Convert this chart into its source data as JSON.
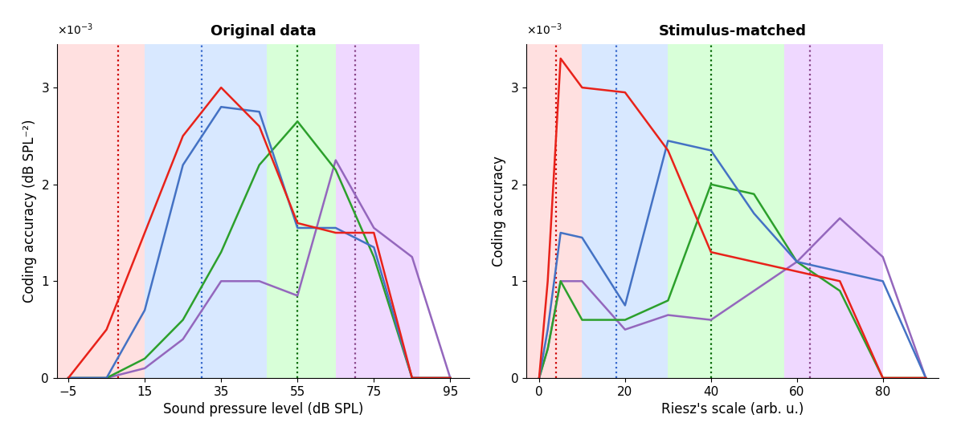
{
  "left_title": "Original data",
  "right_title": "Stimulus-matched",
  "left_xlabel": "Sound pressure level (dB SPL)",
  "right_xlabel": "Riesz's scale (arb. u.)",
  "ylabel_left": "Coding accuracy (dB SPL⁻²)",
  "ylabel_right": "Coding accuracy",
  "left_xlim": [
    -8,
    100
  ],
  "left_xticks": [
    -5,
    15,
    35,
    55,
    75,
    95
  ],
  "right_xlim": [
    -3,
    93
  ],
  "right_xticks": [
    0,
    20,
    40,
    60,
    80
  ],
  "ylim": [
    0,
    0.00345
  ],
  "yticks": [
    0,
    0.001,
    0.002,
    0.003
  ],
  "ytick_labels": [
    "0",
    "1",
    "2",
    "3"
  ],
  "left_bg_bands": [
    {
      "xmin": -8,
      "xmax": 15,
      "color": "#ffbbbb",
      "alpha": 0.45
    },
    {
      "xmin": 15,
      "xmax": 47,
      "color": "#aaccff",
      "alpha": 0.45
    },
    {
      "xmin": 47,
      "xmax": 65,
      "color": "#aaffaa",
      "alpha": 0.45
    },
    {
      "xmin": 65,
      "xmax": 87,
      "color": "#ddaaff",
      "alpha": 0.45
    }
  ],
  "right_bg_bands": [
    {
      "xmin": -3,
      "xmax": 10,
      "color": "#ffbbbb",
      "alpha": 0.45
    },
    {
      "xmin": 10,
      "xmax": 30,
      "color": "#aaccff",
      "alpha": 0.45
    },
    {
      "xmin": 30,
      "xmax": 57,
      "color": "#aaffaa",
      "alpha": 0.45
    },
    {
      "xmin": 57,
      "xmax": 80,
      "color": "#ddaaff",
      "alpha": 0.45
    }
  ],
  "left_vlines": [
    {
      "x": 8,
      "color": "#cc0000"
    },
    {
      "x": 30,
      "color": "#3366cc"
    },
    {
      "x": 55,
      "color": "#006600"
    },
    {
      "x": 70,
      "color": "#884488"
    }
  ],
  "right_vlines": [
    {
      "x": 4,
      "color": "#cc0000"
    },
    {
      "x": 18,
      "color": "#3366cc"
    },
    {
      "x": 40,
      "color": "#006600"
    },
    {
      "x": 63,
      "color": "#884488"
    }
  ],
  "left_red_x": [
    -5,
    5,
    15,
    25,
    35,
    45,
    55,
    65,
    75,
    85,
    95
  ],
  "left_red_y": [
    0,
    0.0005,
    0.0015,
    0.0025,
    0.003,
    0.0026,
    0.0016,
    0.0015,
    0.0015,
    0.0,
    0.0
  ],
  "left_blue_x": [
    -5,
    5,
    15,
    25,
    35,
    45,
    55,
    65,
    75,
    85,
    95
  ],
  "left_blue_y": [
    0,
    0.0,
    0.0007,
    0.0022,
    0.0028,
    0.00275,
    0.00155,
    0.00155,
    0.00135,
    0.0,
    0.0
  ],
  "left_green_x": [
    -5,
    5,
    15,
    25,
    35,
    45,
    55,
    65,
    75,
    85,
    95
  ],
  "left_green_y": [
    0,
    0.0,
    0.0002,
    0.0006,
    0.0013,
    0.0022,
    0.00265,
    0.00215,
    0.00125,
    0.0,
    0.0
  ],
  "left_purple_x": [
    -5,
    5,
    15,
    25,
    35,
    45,
    55,
    65,
    75,
    85,
    95
  ],
  "left_purple_y": [
    0,
    0.0,
    0.0001,
    0.0004,
    0.001,
    0.001,
    0.00085,
    0.00225,
    0.00155,
    0.00125,
    0.0
  ],
  "right_red_x": [
    0,
    2,
    5,
    10,
    20,
    30,
    40,
    50,
    60,
    70,
    80,
    90
  ],
  "right_red_y": [
    0,
    0.001,
    0.0033,
    0.003,
    0.00295,
    0.00235,
    0.0013,
    0.0012,
    0.0011,
    0.001,
    0.0,
    0.0
  ],
  "right_blue_x": [
    0,
    2,
    5,
    10,
    20,
    30,
    40,
    50,
    60,
    70,
    80,
    90
  ],
  "right_blue_y": [
    0,
    0.0005,
    0.0015,
    0.00145,
    0.00075,
    0.00245,
    0.00235,
    0.0017,
    0.0012,
    0.0011,
    0.001,
    0.0
  ],
  "right_green_x": [
    0,
    2,
    5,
    10,
    20,
    30,
    40,
    50,
    60,
    70,
    80,
    90
  ],
  "right_green_y": [
    0,
    0.0003,
    0.001,
    0.0006,
    0.0006,
    0.0008,
    0.002,
    0.0019,
    0.0012,
    0.0009,
    0.0,
    0.0
  ],
  "right_purple_x": [
    0,
    2,
    5,
    10,
    20,
    30,
    40,
    50,
    60,
    70,
    80,
    90
  ],
  "right_purple_y": [
    0,
    0.0003,
    0.001,
    0.001,
    0.0005,
    0.00065,
    0.0006,
    0.0009,
    0.0012,
    0.00165,
    0.00125,
    0.0
  ],
  "line_colors": {
    "red": "#e8221a",
    "blue": "#4472c4",
    "green": "#2ca02c",
    "purple": "#9467bd"
  },
  "line_width": 1.8,
  "background_color": "#ffffff"
}
